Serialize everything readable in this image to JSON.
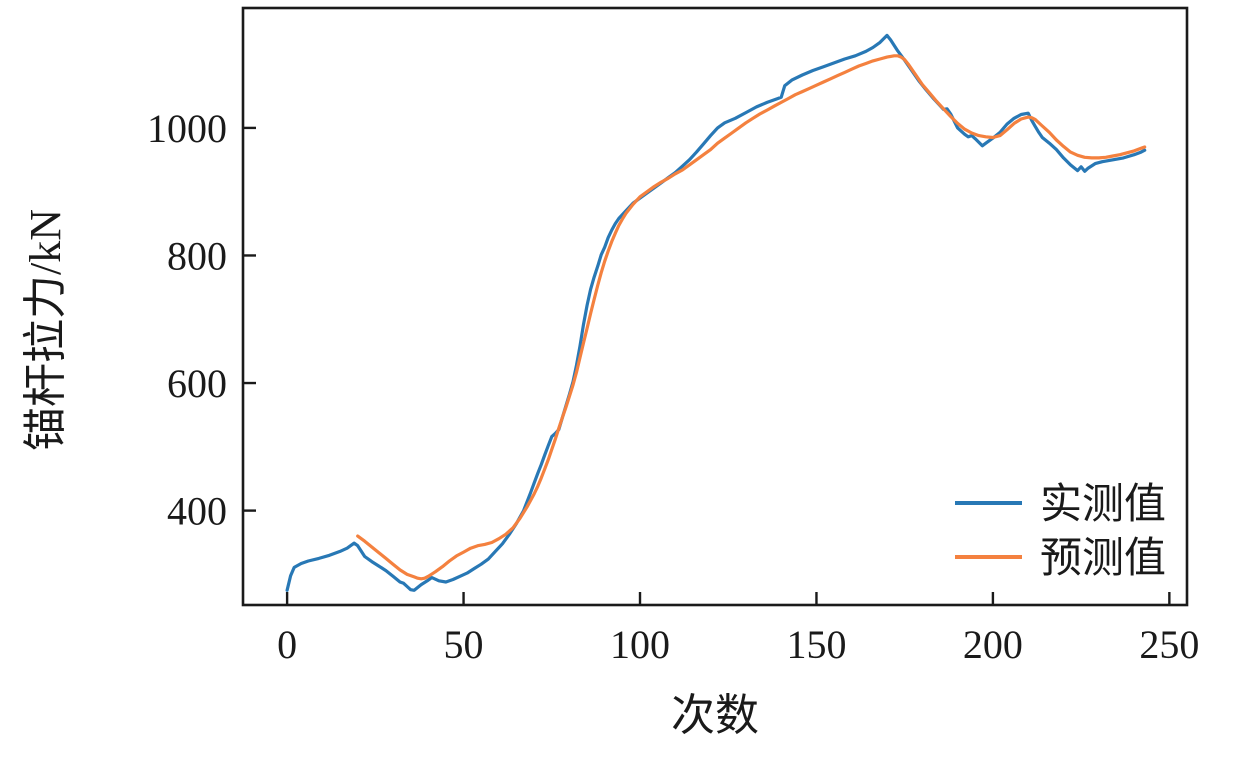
{
  "figure": {
    "background": "#ffffff",
    "axis_color": "#1a1a1a",
    "text_color": "#1a1a1a"
  },
  "chart_data": {
    "type": "line",
    "title": "",
    "xlabel": "次数",
    "ylabel": "锚杆拉力/kN",
    "xlim": [
      -12.5,
      255
    ],
    "ylim": [
      252,
      1188
    ],
    "x_ticks": [
      0,
      50,
      100,
      150,
      200,
      250
    ],
    "y_ticks": [
      400,
      600,
      800,
      1000
    ],
    "grid": false,
    "legend_position": "lower right",
    "series": [
      {
        "name": "实测值",
        "color": "#2878b5",
        "points": [
          [
            0,
            275
          ],
          [
            1,
            298
          ],
          [
            2,
            311
          ],
          [
            4,
            317
          ],
          [
            6,
            321
          ],
          [
            9,
            325
          ],
          [
            12,
            330
          ],
          [
            15,
            336
          ],
          [
            17,
            341
          ],
          [
            19,
            349
          ],
          [
            20,
            345
          ],
          [
            22,
            328
          ],
          [
            24,
            320
          ],
          [
            26,
            313
          ],
          [
            28,
            306
          ],
          [
            30,
            297
          ],
          [
            32,
            288
          ],
          [
            33,
            286
          ],
          [
            34,
            281
          ],
          [
            35,
            276
          ],
          [
            36,
            275
          ],
          [
            38,
            284
          ],
          [
            40,
            291
          ],
          [
            41,
            295
          ],
          [
            43,
            290
          ],
          [
            45,
            288
          ],
          [
            47,
            292
          ],
          [
            49,
            297
          ],
          [
            51,
            302
          ],
          [
            53,
            309
          ],
          [
            55,
            316
          ],
          [
            57,
            324
          ],
          [
            59,
            336
          ],
          [
            61,
            348
          ],
          [
            63,
            363
          ],
          [
            65,
            380
          ],
          [
            67,
            400
          ],
          [
            69,
            428
          ],
          [
            70,
            443
          ],
          [
            71,
            458
          ],
          [
            72,
            472
          ],
          [
            73,
            487
          ],
          [
            74,
            502
          ],
          [
            75,
            516
          ],
          [
            76,
            521
          ],
          [
            77,
            527
          ],
          [
            78,
            546
          ],
          [
            79,
            564
          ],
          [
            80,
            582
          ],
          [
            81,
            602
          ],
          [
            82,
            628
          ],
          [
            83,
            658
          ],
          [
            84,
            692
          ],
          [
            85,
            722
          ],
          [
            86,
            747
          ],
          [
            87,
            766
          ],
          [
            88,
            783
          ],
          [
            89,
            801
          ],
          [
            90,
            813
          ],
          [
            91,
            828
          ],
          [
            92,
            840
          ],
          [
            93,
            850
          ],
          [
            94,
            858
          ],
          [
            96,
            870
          ],
          [
            98,
            882
          ],
          [
            100,
            890
          ],
          [
            102,
            898
          ],
          [
            104,
            906
          ],
          [
            106,
            914
          ],
          [
            108,
            922
          ],
          [
            110,
            930
          ],
          [
            112,
            940
          ],
          [
            114,
            950
          ],
          [
            116,
            962
          ],
          [
            118,
            975
          ],
          [
            120,
            988
          ],
          [
            122,
            1000
          ],
          [
            124,
            1008
          ],
          [
            127,
            1015
          ],
          [
            130,
            1024
          ],
          [
            133,
            1033
          ],
          [
            136,
            1040
          ],
          [
            139,
            1046
          ],
          [
            140,
            1048
          ],
          [
            141,
            1066
          ],
          [
            143,
            1075
          ],
          [
            146,
            1083
          ],
          [
            149,
            1090
          ],
          [
            152,
            1096
          ],
          [
            155,
            1102
          ],
          [
            158,
            1108
          ],
          [
            161,
            1113
          ],
          [
            164,
            1120
          ],
          [
            166,
            1126
          ],
          [
            168,
            1134
          ],
          [
            170,
            1145
          ],
          [
            171,
            1138
          ],
          [
            173,
            1121
          ],
          [
            175,
            1106
          ],
          [
            177,
            1090
          ],
          [
            179,
            1074
          ],
          [
            181,
            1060
          ],
          [
            183,
            1047
          ],
          [
            185,
            1035
          ],
          [
            186,
            1029
          ],
          [
            187,
            1030
          ],
          [
            188,
            1022
          ],
          [
            190,
            1000
          ],
          [
            192,
            990
          ],
          [
            193,
            986
          ],
          [
            194,
            988
          ],
          [
            195,
            983
          ],
          [
            197,
            972
          ],
          [
            198,
            976
          ],
          [
            200,
            984
          ],
          [
            202,
            993
          ],
          [
            204,
            1006
          ],
          [
            206,
            1015
          ],
          [
            208,
            1021
          ],
          [
            210,
            1023
          ],
          [
            211,
            1012
          ],
          [
            212,
            1002
          ],
          [
            213,
            993
          ],
          [
            214,
            985
          ],
          [
            216,
            976
          ],
          [
            218,
            966
          ],
          [
            220,
            953
          ],
          [
            222,
            942
          ],
          [
            224,
            933
          ],
          [
            225,
            939
          ],
          [
            226,
            932
          ],
          [
            227,
            937
          ],
          [
            229,
            944
          ],
          [
            231,
            947
          ],
          [
            234,
            950
          ],
          [
            237,
            953
          ],
          [
            240,
            958
          ],
          [
            242,
            962
          ],
          [
            243,
            965
          ]
        ]
      },
      {
        "name": "预测值",
        "color": "#f4813f",
        "points": [
          [
            20,
            360
          ],
          [
            22,
            352
          ],
          [
            24,
            343
          ],
          [
            26,
            334
          ],
          [
            28,
            325
          ],
          [
            30,
            316
          ],
          [
            32,
            307
          ],
          [
            34,
            300
          ],
          [
            36,
            296
          ],
          [
            37,
            294
          ],
          [
            38,
            293
          ],
          [
            39,
            294
          ],
          [
            40,
            297
          ],
          [
            42,
            304
          ],
          [
            44,
            312
          ],
          [
            46,
            321
          ],
          [
            48,
            329
          ],
          [
            50,
            335
          ],
          [
            52,
            341
          ],
          [
            54,
            345
          ],
          [
            56,
            347
          ],
          [
            58,
            350
          ],
          [
            60,
            356
          ],
          [
            62,
            363
          ],
          [
            64,
            373
          ],
          [
            66,
            388
          ],
          [
            68,
            406
          ],
          [
            70,
            426
          ],
          [
            71,
            438
          ],
          [
            72,
            451
          ],
          [
            73,
            465
          ],
          [
            74,
            480
          ],
          [
            75,
            496
          ],
          [
            76,
            512
          ],
          [
            77,
            529
          ],
          [
            78,
            546
          ],
          [
            79,
            562
          ],
          [
            80,
            579
          ],
          [
            81,
            597
          ],
          [
            82,
            617
          ],
          [
            83,
            640
          ],
          [
            84,
            663
          ],
          [
            85,
            686
          ],
          [
            86,
            709
          ],
          [
            87,
            731
          ],
          [
            88,
            753
          ],
          [
            89,
            773
          ],
          [
            90,
            791
          ],
          [
            91,
            807
          ],
          [
            92,
            822
          ],
          [
            93,
            835
          ],
          [
            94,
            847
          ],
          [
            95,
            857
          ],
          [
            96,
            866
          ],
          [
            98,
            880
          ],
          [
            100,
            892
          ],
          [
            102,
            900
          ],
          [
            104,
            908
          ],
          [
            106,
            915
          ],
          [
            108,
            921
          ],
          [
            110,
            928
          ],
          [
            112,
            934
          ],
          [
            114,
            942
          ],
          [
            116,
            950
          ],
          [
            118,
            958
          ],
          [
            120,
            966
          ],
          [
            122,
            976
          ],
          [
            124,
            984
          ],
          [
            126,
            992
          ],
          [
            128,
            1000
          ],
          [
            130,
            1008
          ],
          [
            132,
            1015
          ],
          [
            134,
            1022
          ],
          [
            136,
            1028
          ],
          [
            138,
            1034
          ],
          [
            140,
            1040
          ],
          [
            142,
            1046
          ],
          [
            144,
            1052
          ],
          [
            146,
            1057
          ],
          [
            148,
            1062
          ],
          [
            150,
            1067
          ],
          [
            152,
            1072
          ],
          [
            154,
            1077
          ],
          [
            156,
            1082
          ],
          [
            158,
            1087
          ],
          [
            160,
            1092
          ],
          [
            162,
            1097
          ],
          [
            164,
            1101
          ],
          [
            166,
            1105
          ],
          [
            168,
            1108
          ],
          [
            170,
            1111
          ],
          [
            172,
            1113
          ],
          [
            173,
            1113
          ],
          [
            174,
            1111
          ],
          [
            175,
            1107
          ],
          [
            176,
            1100
          ],
          [
            178,
            1084
          ],
          [
            180,
            1068
          ],
          [
            182,
            1055
          ],
          [
            184,
            1042
          ],
          [
            186,
            1030
          ],
          [
            188,
            1018
          ],
          [
            190,
            1007
          ],
          [
            192,
            998
          ],
          [
            194,
            992
          ],
          [
            196,
            988
          ],
          [
            198,
            986
          ],
          [
            200,
            985
          ],
          [
            202,
            988
          ],
          [
            204,
            997
          ],
          [
            206,
            1007
          ],
          [
            208,
            1014
          ],
          [
            210,
            1017
          ],
          [
            211,
            1016
          ],
          [
            212,
            1013
          ],
          [
            214,
            1003
          ],
          [
            216,
            993
          ],
          [
            218,
            981
          ],
          [
            220,
            971
          ],
          [
            222,
            962
          ],
          [
            224,
            957
          ],
          [
            226,
            954
          ],
          [
            228,
            953
          ],
          [
            230,
            953
          ],
          [
            232,
            954
          ],
          [
            234,
            956
          ],
          [
            236,
            958
          ],
          [
            238,
            961
          ],
          [
            240,
            964
          ],
          [
            242,
            968
          ],
          [
            243,
            970
          ]
        ]
      }
    ]
  }
}
